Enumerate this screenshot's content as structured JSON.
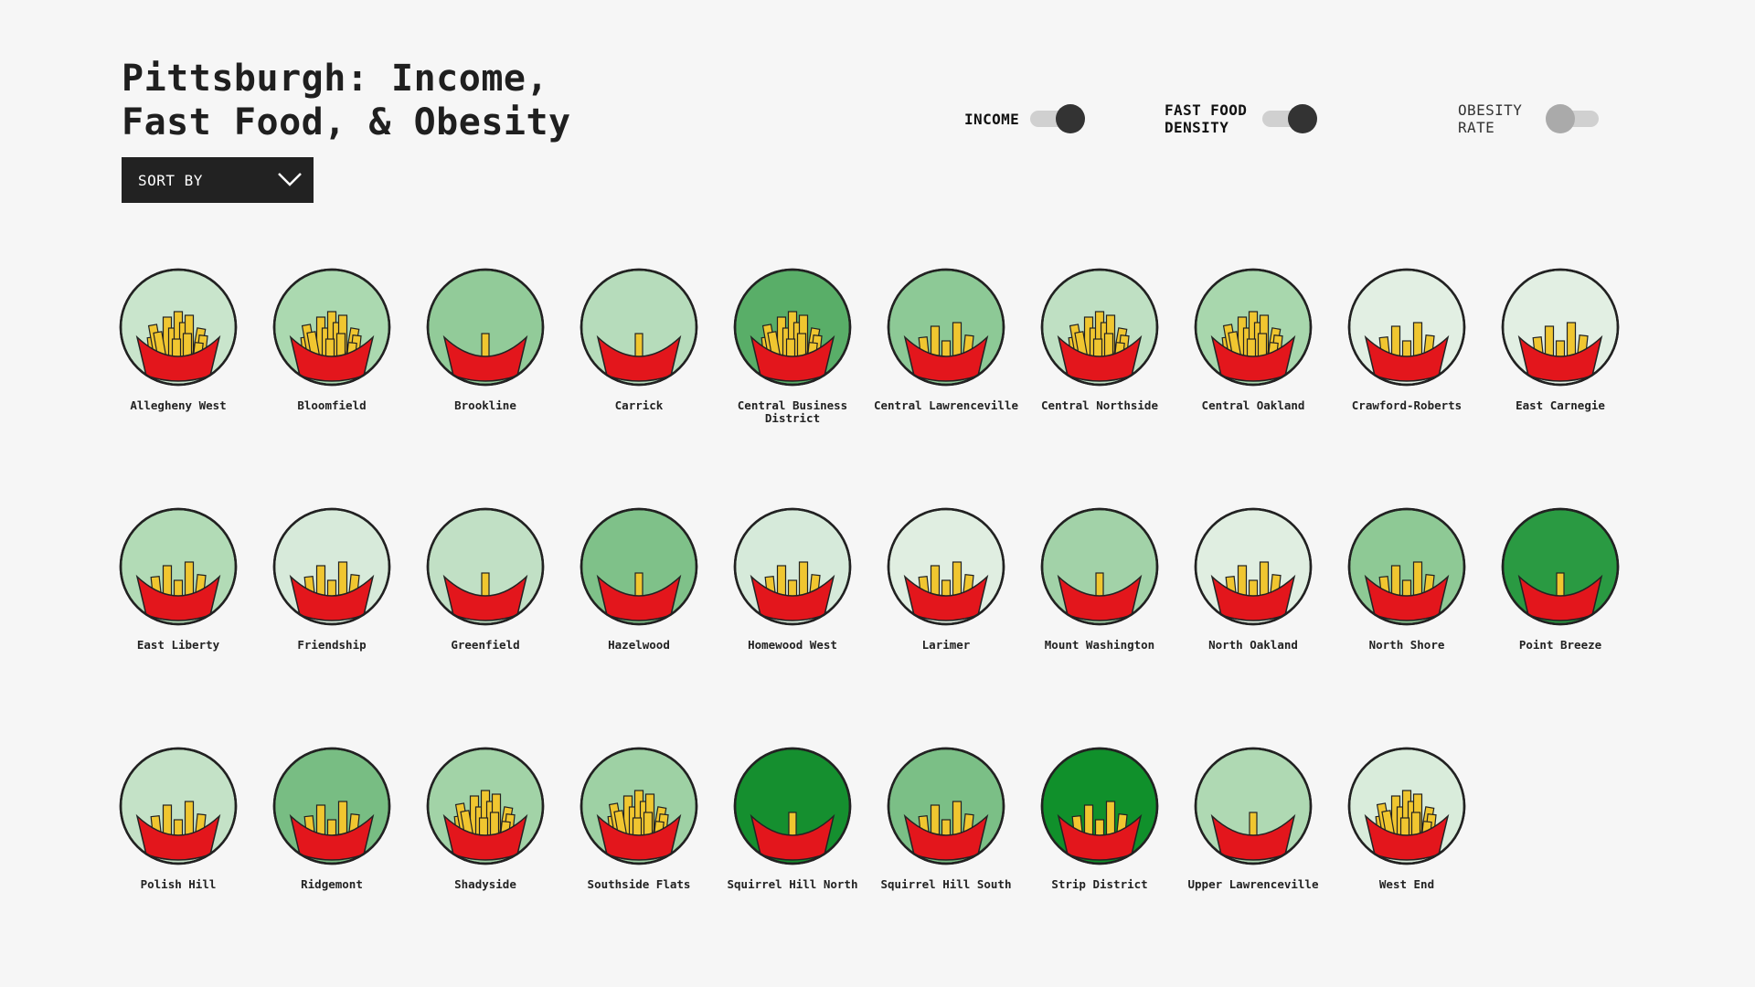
{
  "title": "Pittsburgh: Income,\nFast Food, & Obesity",
  "sort": {
    "label": "SORT BY",
    "icon": "chevron-down-icon"
  },
  "toggles": [
    {
      "label": "INCOME",
      "on": true
    },
    {
      "label": "FAST FOOD DENSITY",
      "on": true
    },
    {
      "label": "OBESITY RATE",
      "on": false
    }
  ],
  "colors": {
    "background": "#f6f6f6",
    "fry": "#f0c630",
    "carton": "#e3161c",
    "outline": "#222222"
  },
  "neighborhoods": [
    {
      "name": "Allegheny West",
      "fill": "#c9e5cc",
      "fries": "high"
    },
    {
      "name": "Bloomfield",
      "fill": "#abd9b0",
      "fries": "high"
    },
    {
      "name": "Brookline",
      "fill": "#92cb99",
      "fries": "low"
    },
    {
      "name": "Carrick",
      "fill": "#b6dcbb",
      "fries": "low"
    },
    {
      "name": "Central Business District",
      "fill": "#59ae68",
      "fries": "high"
    },
    {
      "name": "Central Lawrenceville",
      "fill": "#8dc996",
      "fries": "medium"
    },
    {
      "name": "Central Northside",
      "fill": "#bfe0c3",
      "fries": "high"
    },
    {
      "name": "Central Oakland",
      "fill": "#a8d7ad",
      "fries": "high"
    },
    {
      "name": "Crawford-Roberts",
      "fill": "#e2efe3",
      "fries": "medium"
    },
    {
      "name": "East Carnegie",
      "fill": "#e2efe3",
      "fries": "medium"
    },
    {
      "name": "East Liberty",
      "fill": "#b2dbb6",
      "fries": "medium"
    },
    {
      "name": "Friendship",
      "fill": "#d7eada",
      "fries": "medium"
    },
    {
      "name": "Greenfield",
      "fill": "#c1e0c5",
      "fries": "low"
    },
    {
      "name": "Hazelwood",
      "fill": "#7fc189",
      "fries": "low"
    },
    {
      "name": "Homewood West",
      "fill": "#d6eada",
      "fries": "medium"
    },
    {
      "name": "Larimer",
      "fill": "#e0eee1",
      "fries": "medium"
    },
    {
      "name": "Mount Washington",
      "fill": "#a2d2a8",
      "fries": "low"
    },
    {
      "name": "North Oakland",
      "fill": "#e0eee1",
      "fries": "medium"
    },
    {
      "name": "North Shore",
      "fill": "#8ec995",
      "fries": "medium"
    },
    {
      "name": "Point Breeze",
      "fill": "#2a9a42",
      "fries": "low"
    },
    {
      "name": "Polish Hill",
      "fill": "#c4e2c7",
      "fries": "medium"
    },
    {
      "name": "Ridgemont",
      "fill": "#78bd83",
      "fries": "medium"
    },
    {
      "name": "Shadyside",
      "fill": "#a2d3a7",
      "fries": "high"
    },
    {
      "name": "Southside Flats",
      "fill": "#9ed1a4",
      "fries": "high"
    },
    {
      "name": "Squirrel Hill North",
      "fill": "#158f2f",
      "fries": "low"
    },
    {
      "name": "Squirrel Hill South",
      "fill": "#7bbf86",
      "fries": "medium"
    },
    {
      "name": "Strip District",
      "fill": "#10902b",
      "fries": "medium"
    },
    {
      "name": "Upper Lawrenceville",
      "fill": "#afd9b3",
      "fries": "low"
    },
    {
      "name": "West End",
      "fill": "#d9ecdb",
      "fries": "high"
    }
  ]
}
